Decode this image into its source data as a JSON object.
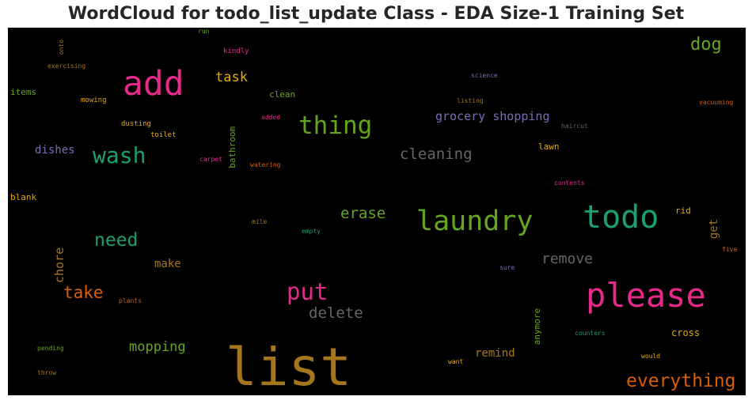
{
  "chart_data": {
    "type": "wordcloud",
    "title": "WordCloud for todo_list_update Class - EDA Size-1 Training Set",
    "background": "#000000",
    "words": [
      {
        "text": "list",
        "color": "#a6761d"
      },
      {
        "text": "please",
        "color": "#e7298a"
      },
      {
        "text": "todo",
        "color": "#1b9e77"
      },
      {
        "text": "laundry",
        "color": "#66a61e"
      },
      {
        "text": "add",
        "color": "#e7298a"
      },
      {
        "text": "thing",
        "color": "#66a61e"
      },
      {
        "text": "put",
        "color": "#e7298a"
      },
      {
        "text": "wash",
        "color": "#1b9e77"
      },
      {
        "text": "everything",
        "color": "#d95f02"
      },
      {
        "text": "need",
        "color": "#1b9e77"
      },
      {
        "text": "dog",
        "color": "#66a61e"
      },
      {
        "text": "take",
        "color": "#d95f02"
      },
      {
        "text": "delete",
        "color": "#666666"
      },
      {
        "text": "cleaning",
        "color": "#666666"
      },
      {
        "text": "remove",
        "color": "#666666"
      },
      {
        "text": "erase",
        "color": "#66a61e"
      },
      {
        "text": "mopping",
        "color": "#66a61e"
      },
      {
        "text": "task",
        "color": "#e6ab02"
      },
      {
        "text": "grocery shopping",
        "color": "#7570b3"
      },
      {
        "text": "make",
        "color": "#a6761d"
      },
      {
        "text": "chore",
        "color": "#a6761d"
      },
      {
        "text": "remind",
        "color": "#a6761d"
      },
      {
        "text": "get",
        "color": "#a6761d"
      },
      {
        "text": "dishes",
        "color": "#7570b3"
      },
      {
        "text": "anymore",
        "color": "#66a61e"
      },
      {
        "text": "bathroom",
        "color": "#66a61e"
      },
      {
        "text": "lawn",
        "color": "#e6ab02"
      },
      {
        "text": "rid",
        "color": "#e6ab02"
      },
      {
        "text": "cross",
        "color": "#e6ab02"
      },
      {
        "text": "clean",
        "color": "#66a61e"
      },
      {
        "text": "items",
        "color": "#66a61e"
      },
      {
        "text": "blank",
        "color": "#e6ab02"
      },
      {
        "text": "mowing",
        "color": "#e6ab02"
      },
      {
        "text": "dusting",
        "color": "#e6ab02"
      },
      {
        "text": "toilet",
        "color": "#e6ab02"
      },
      {
        "text": "kindly",
        "color": "#e7298a"
      },
      {
        "text": "added",
        "color": "#e7298a"
      },
      {
        "text": "carpet",
        "color": "#e7298a"
      },
      {
        "text": "watering",
        "color": "#d95f02"
      },
      {
        "text": "science",
        "color": "#7570b3"
      },
      {
        "text": "listing",
        "color": "#a6761d"
      },
      {
        "text": "haircut",
        "color": "#666666"
      },
      {
        "text": "vacuuming",
        "color": "#d95f02"
      },
      {
        "text": "contents",
        "color": "#e7298a"
      },
      {
        "text": "five",
        "color": "#d95f02"
      },
      {
        "text": "exercising",
        "color": "#a6761d"
      },
      {
        "text": "onto",
        "color": "#a6761d"
      },
      {
        "text": "run",
        "color": "#66a61e"
      },
      {
        "text": "mile",
        "color": "#a6761d"
      },
      {
        "text": "empty",
        "color": "#1b9e77"
      },
      {
        "text": "sure",
        "color": "#7570b3"
      },
      {
        "text": "plants",
        "color": "#d95f02"
      },
      {
        "text": "pending",
        "color": "#66a61e"
      },
      {
        "text": "throw",
        "color": "#a6761d"
      },
      {
        "text": "counters",
        "color": "#1b9e77"
      },
      {
        "text": "would",
        "color": "#e6ab02"
      },
      {
        "text": "want",
        "color": "#e6ab02"
      }
    ]
  }
}
